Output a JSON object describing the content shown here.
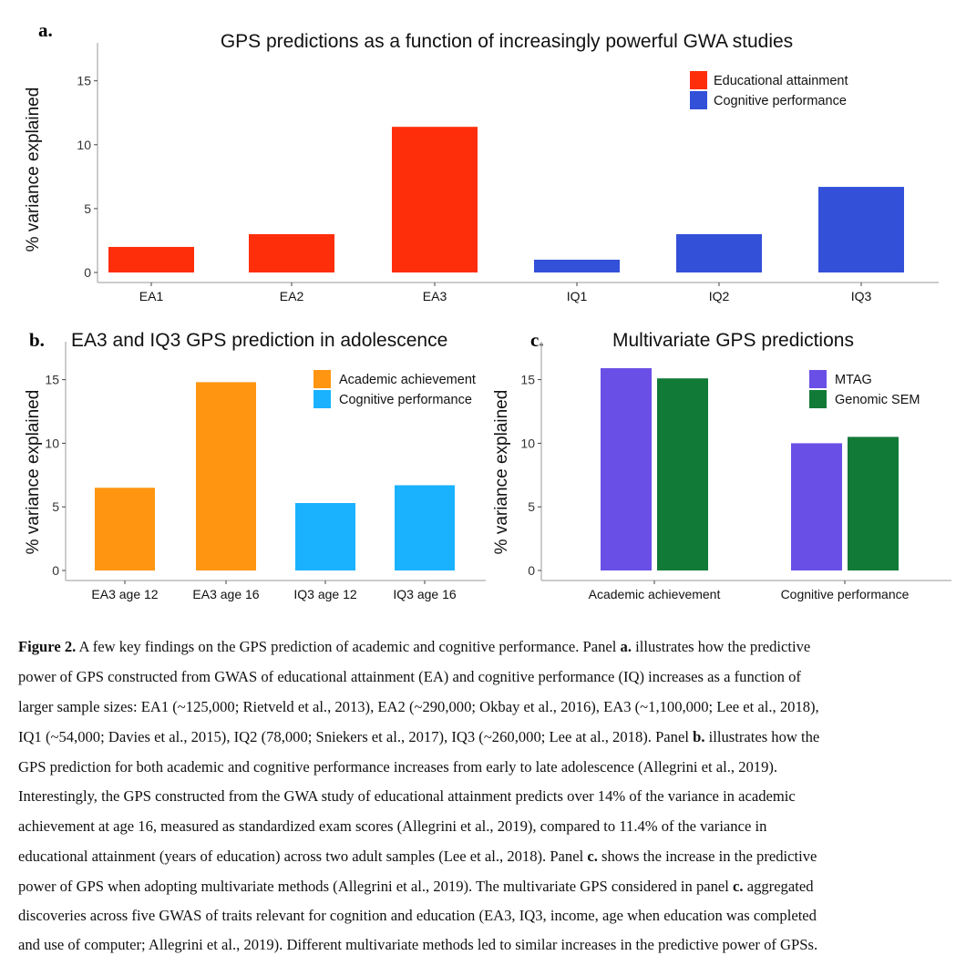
{
  "chart_data": [
    {
      "type": "bar",
      "panel_label": "a.",
      "title": "GPS predictions as a function of increasingly powerful GWA studies",
      "xlabel": "",
      "ylabel": "% variance explained",
      "ylim": [
        0,
        17
      ],
      "yticks": [
        0,
        5,
        10,
        15
      ],
      "categories": [
        "EA1",
        "EA2",
        "EA3",
        "IQ1",
        "IQ2",
        "IQ3"
      ],
      "values": [
        2.0,
        3.0,
        11.4,
        1.0,
        3.0,
        6.7
      ],
      "groups": [
        "Educational attainment",
        "Educational attainment",
        "Educational attainment",
        "Cognitive performance",
        "Cognitive performance",
        "Cognitive performance"
      ],
      "legend": [
        {
          "label": "Educational attainment",
          "color": "#FF2E0A"
        },
        {
          "label": "Cognitive performance",
          "color": "#3350D9"
        }
      ],
      "legend_position": "top-right",
      "grid": false
    },
    {
      "type": "bar",
      "panel_label": "b.",
      "title": "EA3 and IQ3 GPS prediction in adolescence",
      "xlabel": "",
      "ylabel": "% variance explained",
      "ylim": [
        0,
        17
      ],
      "yticks": [
        0,
        5,
        10,
        15
      ],
      "categories": [
        "EA3 age 12",
        "EA3 age 16",
        "IQ3 age 12",
        "IQ3 age 16"
      ],
      "values": [
        6.5,
        14.8,
        5.3,
        6.7
      ],
      "groups": [
        "Academic achievement",
        "Academic achievement",
        "Cognitive performance",
        "Cognitive performance"
      ],
      "legend": [
        {
          "label": "Academic achievement",
          "color": "#FF9510"
        },
        {
          "label": "Cognitive performance",
          "color": "#1AB2FF"
        }
      ],
      "legend_position": "top-right",
      "grid": false
    },
    {
      "type": "bar",
      "panel_label": "c.",
      "title": "Multivariate GPS predictions",
      "xlabel": "",
      "ylabel": "% variance explained",
      "ylim": [
        0,
        17
      ],
      "yticks": [
        0,
        5,
        10,
        15
      ],
      "categories": [
        "Academic achievement",
        "Cognitive performance"
      ],
      "series": [
        {
          "name": "MTAG",
          "color": "#6A4FE6",
          "values": [
            15.9,
            10.0
          ]
        },
        {
          "name": "Genomic SEM",
          "color": "#127A37",
          "values": [
            15.1,
            10.5
          ]
        }
      ],
      "legend_position": "top-right",
      "grid": false
    }
  ],
  "caption": [
    [
      {
        "t": "Figure 2.",
        "b": true
      },
      {
        "t": " A few key findings on the GPS prediction of academic and cognitive performance. Panel "
      },
      {
        "t": "a.",
        "b": true
      },
      {
        "t": " illustrates how the predictive"
      }
    ],
    [
      {
        "t": "power of GPS constructed from GWAS of educational attainment (EA) and cognitive performance (IQ) increases as a function of"
      }
    ],
    [
      {
        "t": "larger sample sizes: EA1 (~125,000; Rietveld et al., 2013), EA2 (~290,000; Okbay et al., 2016), EA3 (~1,100,000; Lee et al., 2018),"
      }
    ],
    [
      {
        "t": "IQ1 (~54,000; Davies et al., 2015), IQ2 (78,000; Sniekers et al., 2017), IQ3 (~260,000; Lee at al., 2018). Panel "
      },
      {
        "t": "b.",
        "b": true
      },
      {
        "t": " illustrates how the"
      }
    ],
    [
      {
        "t": "GPS prediction for both academic and cognitive performance increases from early to late adolescence (Allegrini et al., 2019)."
      }
    ],
    [
      {
        "t": "Interestingly, the GPS constructed from the GWA study of educational attainment predicts over 14% of the variance in academic"
      }
    ],
    [
      {
        "t": "achievement at age 16, measured as standardized exam scores (Allegrini et al., 2019), compared to 11.4% of the variance in"
      }
    ],
    [
      {
        "t": "educational attainment (years of education) across two adult samples (Lee et al., 2018). Panel "
      },
      {
        "t": "c.",
        "b": true
      },
      {
        "t": " shows the increase in the predictive"
      }
    ],
    [
      {
        "t": "power of GPS when adopting multivariate methods (Allegrini et al., 2019). The multivariate GPS considered in panel "
      },
      {
        "t": "c.",
        "b": true
      },
      {
        "t": " aggregated"
      }
    ],
    [
      {
        "t": "discoveries across five GWAS of traits relevant for cognition and education (EA3, IQ3, income, age when education was completed"
      }
    ],
    [
      {
        "t": "and use of computer; Allegrini et al., 2019). Different multivariate methods led to similar increases in the predictive power of GPSs."
      }
    ]
  ]
}
